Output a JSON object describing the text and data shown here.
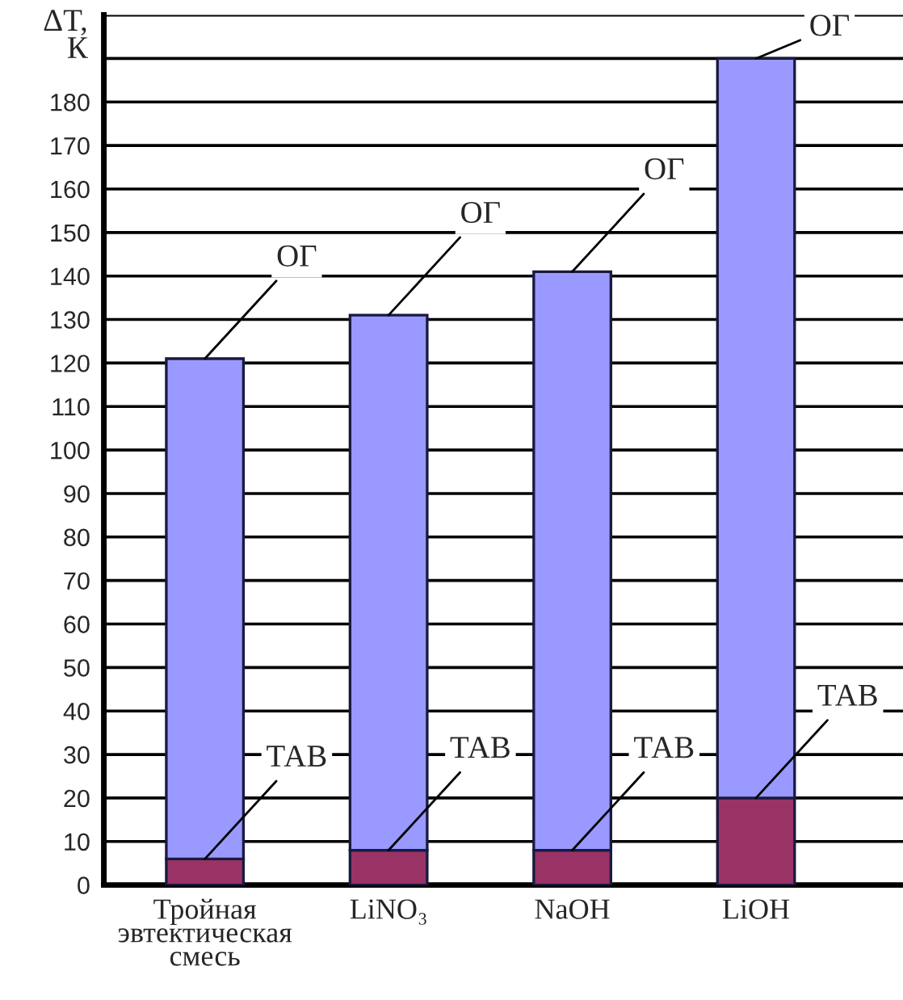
{
  "chart_data": {
    "type": "bar",
    "stacked": true,
    "ylabel": "ΔT,\nК",
    "categories": [
      "Тройная\nэвтектическая\nсмесь",
      "LiNO₃",
      "NaOH",
      "LiOH"
    ],
    "series": [
      {
        "color": "#993366",
        "values": [
          6,
          8,
          8,
          20
        ]
      },
      {
        "color": "#9999ff",
        "values": [
          115,
          123,
          133,
          170
        ]
      }
    ],
    "ylim": [
      0,
      200
    ],
    "yticks": [
      0,
      10,
      20,
      30,
      40,
      50,
      60,
      70,
      80,
      90,
      100,
      110,
      120,
      130,
      140,
      150,
      160,
      170,
      180,
      {
        "value": 190,
        "label": null
      },
      {
        "value": 200,
        "label": null
      }
    ],
    "grid": "y",
    "annotations": [
      {
        "text": "ТАВ",
        "x": "Тройная\nэвтектическая\nсмесь",
        "y": 6
      },
      {
        "text": "ТАВ",
        "x": "LiNO₃",
        "y": 8
      },
      {
        "text": "ТАВ",
        "x": "NaOH",
        "y": 8
      },
      {
        "text": "ТАВ",
        "x": "LiOH",
        "y": 20
      },
      {
        "text": "ОГ",
        "x": "Тройная\nэвтектическая\nсмесь",
        "y": 121
      },
      {
        "text": "ОГ",
        "x": "LiNO₃",
        "y": 131
      },
      {
        "text": "ОГ",
        "x": "NaOH",
        "y": 141
      },
      {
        "text": "ОГ",
        "x": "LiOH",
        "y": 190
      }
    ]
  }
}
